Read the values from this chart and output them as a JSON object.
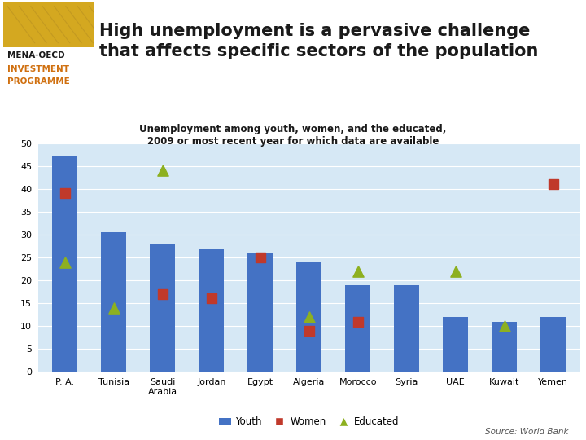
{
  "categories": [
    "P. A.",
    "Tunisia",
    "Saudi\nArabia",
    "Jordan",
    "Egypt",
    "Algeria",
    "Morocco",
    "Syria",
    "UAE",
    "Kuwait",
    "Yemen"
  ],
  "youth": [
    47,
    30.5,
    28,
    27,
    26,
    24,
    19,
    19,
    12,
    11,
    12
  ],
  "women": [
    39,
    null,
    17,
    16,
    25,
    9,
    11,
    null,
    null,
    null,
    41
  ],
  "educated": [
    24,
    14,
    44,
    null,
    null,
    12,
    22,
    null,
    22,
    10,
    null
  ],
  "youth_color": "#4472C4",
  "women_color": "#C0392B",
  "educated_color": "#8DB020",
  "background_color": "#D6E8F5",
  "title_main": "High unemployment is a pervasive challenge\nthat affects specific sectors of the population",
  "subtitle": "Unemployment among youth, women, and the educated,\n2009 or most recent year for which data are available",
  "source": "Source: World Bank",
  "ylim": [
    0,
    50
  ],
  "yticks": [
    0,
    5,
    10,
    15,
    20,
    25,
    30,
    35,
    40,
    45,
    50
  ],
  "stripe_colors": [
    "#6B4A10",
    "#C8900A",
    "#E8B830",
    "#D07010"
  ],
  "logo_bg_color": "#C8A030",
  "logo_text_color_main": "#1A1A1A",
  "logo_text_color_invest": "#D07010"
}
